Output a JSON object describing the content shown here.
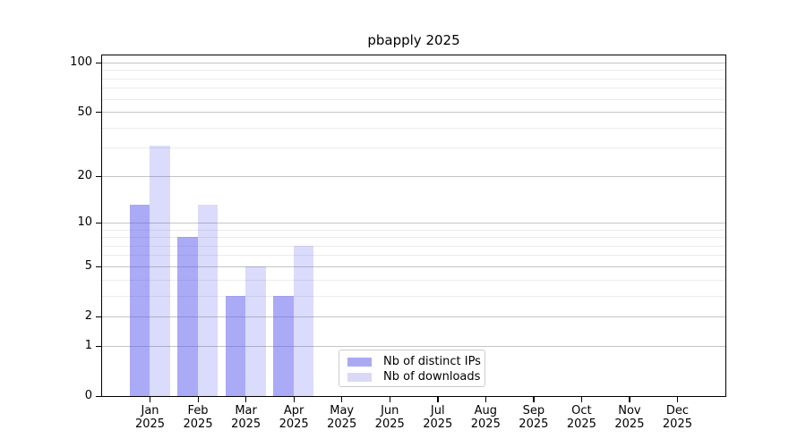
{
  "figure_title": "pbapply 2025",
  "chart_data": {
    "type": "bar",
    "title": "pbapply 2025",
    "xlabel": "",
    "ylabel": "",
    "categories": [
      "Jan 2025",
      "Feb 2025",
      "Mar 2025",
      "Apr 2025",
      "May 2025",
      "Jun 2025",
      "Jul 2025",
      "Aug 2025",
      "Sep 2025",
      "Oct 2025",
      "Nov 2025",
      "Dec 2025"
    ],
    "series": [
      {
        "name": "Nb of distinct IPs",
        "values": [
          13,
          8,
          3,
          3,
          0,
          0,
          0,
          0,
          0,
          0,
          0,
          0
        ],
        "fill": "rgba(85,85,240,0.5)",
        "swatch_color": "#aaaaf2"
      },
      {
        "name": "Nb of downloads",
        "values": [
          31,
          13,
          5,
          7,
          0,
          0,
          0,
          0,
          0,
          0,
          0,
          0
        ],
        "fill": "rgba(85,85,240,0.21)",
        "swatch_color": "#d9d9f7"
      }
    ],
    "yscale": "log1p",
    "ylim": [
      0,
      111
    ],
    "yticks_major": [
      0,
      1,
      2,
      5,
      10,
      20,
      50,
      100
    ],
    "yticks_minor": [
      3,
      4,
      6,
      7,
      8,
      9,
      30,
      40,
      60,
      70,
      80,
      90
    ],
    "grid": true,
    "legend_position": "lower center inside axes",
    "colors": {
      "bar_dark": "#aaaaf7",
      "bar_light": "#ddddfb",
      "grid_major": "#c4c4c4",
      "grid_minor": "#ebebeb",
      "axis": "#000000",
      "background": "#ffffff"
    }
  }
}
